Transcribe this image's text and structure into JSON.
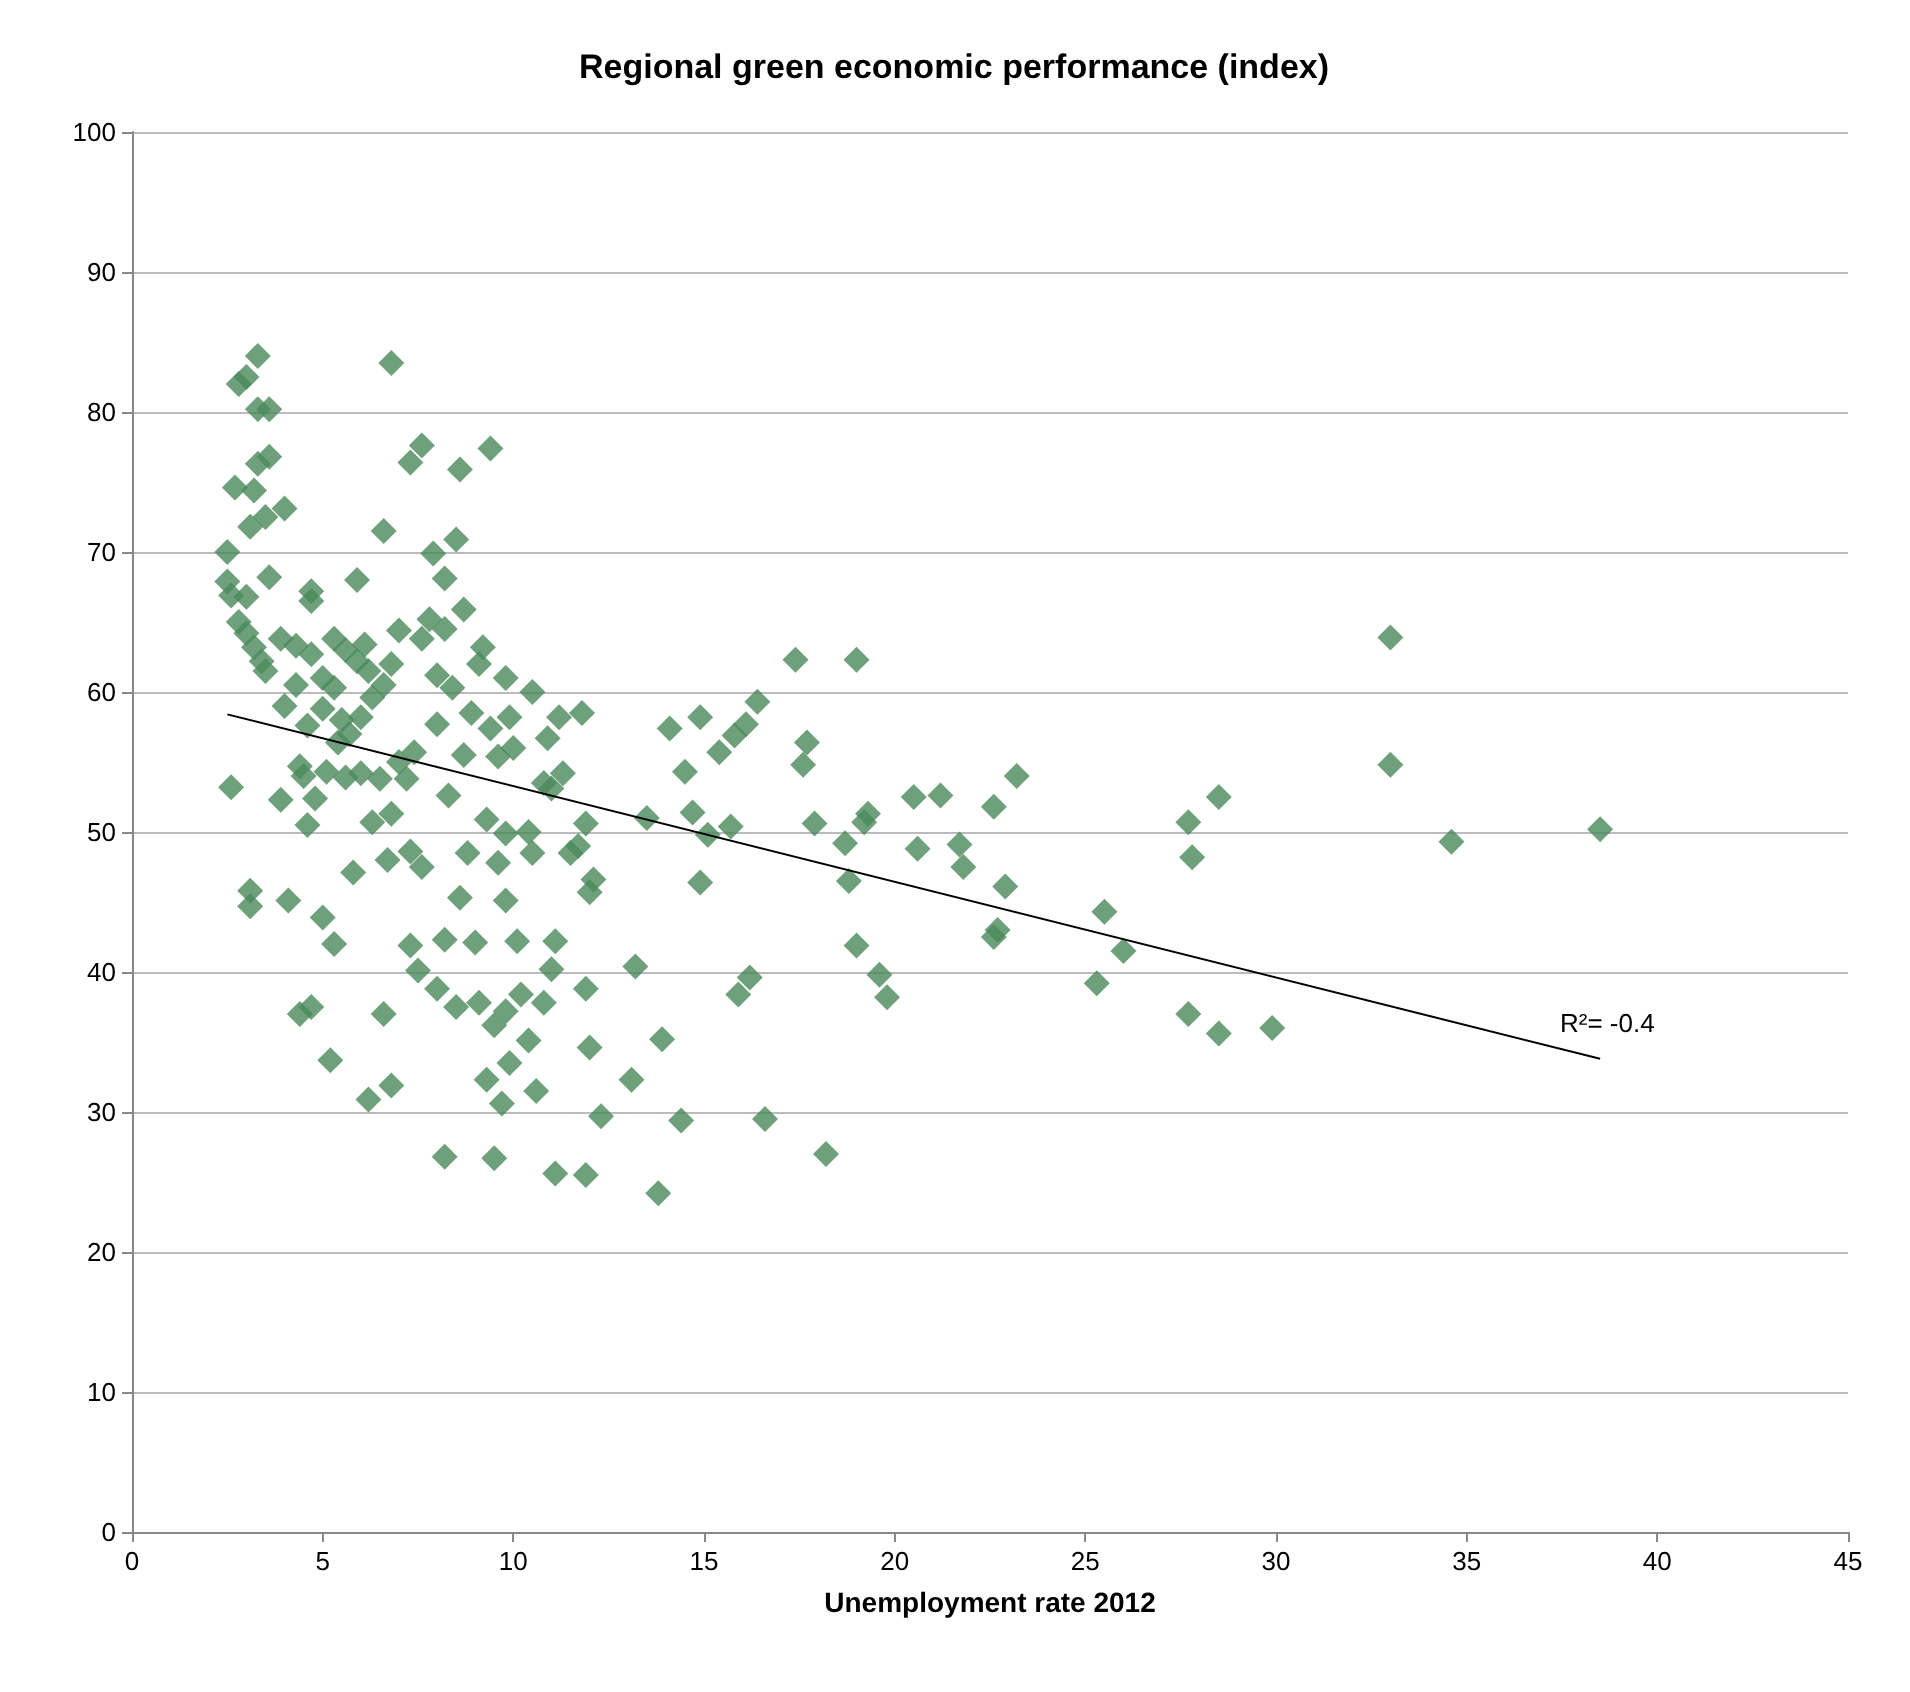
{
  "chart_data": {
    "type": "scatter",
    "title": "Regional green economic performance (index)",
    "xlabel": "Unemployment rate 2012",
    "xlim": [
      0,
      45
    ],
    "xticks": [
      0,
      5,
      10,
      15,
      20,
      25,
      30,
      35,
      40,
      45
    ],
    "ylim": [
      0,
      100
    ],
    "yticks": [
      0,
      10,
      20,
      30,
      40,
      50,
      60,
      70,
      80,
      90,
      100
    ],
    "grid": "y",
    "marker": "diamond",
    "series": [
      {
        "color": "#4a8a5a",
        "x": [
          33.0,
          33.0,
          34.6,
          38.5,
          27.7,
          27.8,
          28.5,
          27.7,
          28.5,
          29.9,
          25.3,
          25.5,
          26.0,
          22.6,
          22.7,
          22.6,
          22.9,
          23.2,
          21.7,
          21.8,
          21.2,
          20.6,
          20.5,
          19.6,
          19.8,
          19.0,
          19.2,
          19.3,
          18.7,
          18.8,
          19.0,
          17.9,
          17.6,
          17.7,
          17.4,
          16.4,
          16.1,
          15.8,
          15.4,
          15.7,
          15.9,
          16.2,
          16.6,
          18.2,
          14.9,
          14.5,
          14.7,
          14.9,
          15.1,
          14.1,
          13.9,
          13.8,
          14.4,
          13.5,
          13.2,
          13.1,
          12.3,
          12.0,
          11.9,
          11.1,
          11.9,
          11.9,
          12.1,
          12.0,
          11.7,
          11.5,
          11.8,
          11.2,
          10.9,
          11.3,
          11.0,
          10.5,
          10.8,
          10.4,
          10.5,
          11.1,
          11.0,
          10.8,
          10.6,
          10.4,
          10.2,
          10.1,
          9.8,
          9.8,
          9.7,
          9.9,
          9.3,
          9.5,
          9.5,
          9.8,
          9.6,
          9.3,
          9.4,
          9.6,
          9.9,
          10.0,
          9.8,
          9.1,
          9.2,
          9.4,
          8.6,
          8.5,
          8.7,
          7.9,
          8.2,
          7.6,
          7.3,
          6.8,
          6.6,
          5.9,
          8.9,
          8.7,
          8.4,
          8.0,
          8.2,
          7.8,
          7.6,
          7.0,
          6.8,
          8.0,
          8.3,
          8.8,
          8.6,
          8.2,
          9.0,
          8.5,
          9.1,
          8.0,
          7.5,
          7.3,
          7.6,
          7.3,
          7.2,
          7.4,
          7.0,
          6.8,
          6.5,
          6.3,
          6.7,
          6.6,
          6.8,
          6.2,
          8.2,
          5.2,
          5.8,
          5.3,
          5.0,
          4.7,
          4.4,
          4.1,
          3.1,
          3.1,
          2.6,
          4.6,
          4.8,
          4.5,
          4.4,
          5.1,
          5.6,
          6.0,
          3.9,
          4.0,
          4.3,
          4.7,
          5.0,
          5.3,
          5.6,
          5.9,
          6.2,
          6.6,
          6.0,
          5.5,
          5.0,
          4.6,
          6.3,
          3.4,
          3.2,
          3.0,
          2.8,
          3.5,
          2.6,
          2.5,
          2.5,
          2.7,
          3.2,
          3.3,
          3.5,
          3.6,
          4.0,
          3.1,
          3.6,
          3.0,
          2.8,
          3.0,
          3.3,
          3.3,
          3.6,
          4.7,
          4.7,
          3.9,
          4.3,
          5.3,
          6.1,
          5.4,
          5.7
        ],
        "values": [
          63.9,
          54.8,
          49.3,
          50.2,
          50.7,
          48.2,
          52.5,
          37.0,
          35.6,
          36.0,
          39.2,
          44.3,
          41.5,
          42.5,
          43.0,
          51.8,
          46.1,
          54.0,
          49.1,
          47.5,
          52.6,
          48.8,
          52.5,
          39.8,
          38.2,
          41.9,
          50.7,
          51.3,
          49.2,
          46.5,
          62.3,
          50.6,
          54.8,
          56.4,
          62.3,
          59.3,
          57.7,
          56.9,
          55.7,
          50.4,
          38.4,
          39.6,
          29.5,
          27.0,
          58.2,
          54.3,
          51.4,
          46.4,
          49.8,
          57.4,
          35.2,
          24.2,
          29.4,
          51.0,
          40.4,
          32.3,
          29.7,
          34.6,
          25.5,
          25.6,
          38.8,
          50.6,
          46.6,
          45.7,
          49.0,
          48.5,
          58.5,
          58.2,
          56.7,
          54.2,
          53.1,
          60.0,
          53.5,
          50.0,
          48.5,
          42.2,
          40.2,
          37.8,
          31.5,
          35.1,
          38.4,
          42.2,
          45.1,
          37.2,
          30.6,
          33.5,
          32.3,
          26.7,
          36.2,
          49.9,
          47.8,
          50.9,
          57.4,
          55.4,
          58.2,
          56.0,
          61.0,
          62.0,
          63.2,
          77.4,
          75.9,
          70.9,
          65.9,
          69.9,
          68.1,
          77.6,
          76.4,
          83.5,
          71.5,
          68.0,
          58.5,
          55.5,
          60.3,
          61.2,
          64.5,
          65.2,
          63.8,
          64.4,
          62.0,
          57.7,
          52.6,
          48.5,
          45.3,
          42.3,
          42.1,
          37.5,
          37.8,
          38.8,
          40.1,
          41.9,
          47.5,
          48.6,
          53.8,
          55.7,
          55.0,
          51.3,
          53.8,
          50.7,
          48.0,
          37.0,
          31.9,
          30.9,
          26.8,
          33.7,
          47.1,
          42.0,
          43.9,
          37.5,
          37.0,
          45.1,
          45.8,
          44.7,
          53.2,
          50.5,
          52.4,
          54.0,
          54.7,
          54.3,
          53.9,
          54.2,
          52.3,
          59.0,
          60.5,
          62.7,
          61.0,
          60.3,
          63.0,
          62.2,
          61.5,
          60.5,
          58.2,
          58.0,
          58.8,
          57.6,
          59.6,
          62.2,
          63.2,
          64.2,
          65.0,
          61.5,
          66.9,
          67.9,
          70.0,
          74.6,
          74.4,
          76.3,
          72.5,
          76.8,
          73.1,
          71.8,
          68.2,
          66.8,
          82.0,
          82.5,
          84.0,
          80.2,
          80.2,
          66.5,
          67.2,
          63.8,
          63.3,
          63.8,
          63.4,
          56.4,
          57.0
        ]
      },
      {
        "type": "line",
        "color": "#000000",
        "marker": "none",
        "x": [
          2.5,
          38.5
        ],
        "values": [
          58.4,
          33.8
        ]
      }
    ],
    "annotations": [
      "R²= -0.4"
    ]
  }
}
